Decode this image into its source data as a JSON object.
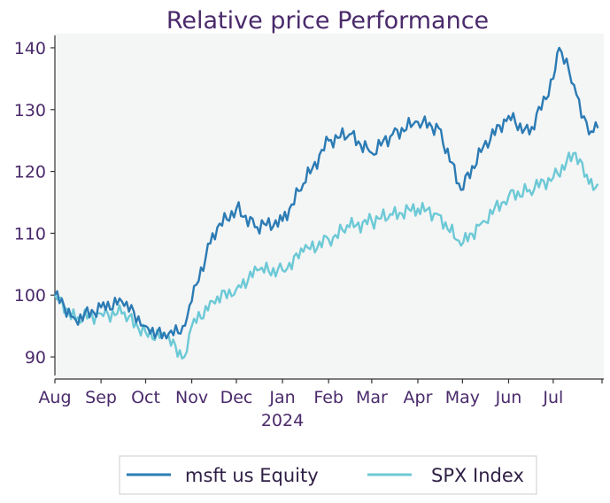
{
  "chart_data": {
    "type": "line",
    "title": "Relative price Performance",
    "xlabel": "",
    "ylabel": "",
    "ylim": [
      87,
      142
    ],
    "y_ticks": [
      90,
      100,
      110,
      120,
      130,
      140
    ],
    "x_tick_labels": [
      "Aug",
      "Sep",
      "Oct",
      "Nov",
      "Dec",
      "Jan",
      "Feb",
      "Mar",
      "Apr",
      "May",
      "Jun",
      "Jul"
    ],
    "year_label": "2024",
    "grid": false,
    "legend_position": "bottom",
    "background": "#f4f5f5",
    "series": [
      {
        "name": "msft us Equity",
        "color": "#2b7bb4",
        "x": [
          "2023-08-01",
          "2023-08-15",
          "2023-09-01",
          "2023-09-15",
          "2023-10-01",
          "2023-10-15",
          "2023-10-26",
          "2023-11-01",
          "2023-11-15",
          "2023-12-01",
          "2023-12-15",
          "2024-01-01",
          "2024-01-15",
          "2024-02-01",
          "2024-02-15",
          "2024-03-01",
          "2024-03-15",
          "2024-04-01",
          "2024-04-15",
          "2024-04-30",
          "2024-05-15",
          "2024-06-01",
          "2024-06-15",
          "2024-07-01",
          "2024-07-05",
          "2024-07-15",
          "2024-07-25",
          "2024-07-31"
        ],
        "values": [
          100,
          96,
          98,
          99,
          95,
          93,
          95,
          99,
          110,
          114,
          111,
          112,
          118,
          125,
          126,
          123,
          126,
          128,
          127,
          117,
          124,
          129,
          126,
          135,
          140,
          134,
          126,
          127
        ]
      },
      {
        "name": "SPX Index",
        "color": "#6cc9d6",
        "x": [
          "2023-08-01",
          "2023-08-15",
          "2023-09-01",
          "2023-09-15",
          "2023-10-01",
          "2023-10-15",
          "2023-10-27",
          "2023-11-01",
          "2023-11-15",
          "2023-12-01",
          "2023-12-15",
          "2024-01-01",
          "2024-01-15",
          "2024-02-01",
          "2024-02-15",
          "2024-03-01",
          "2024-03-15",
          "2024-04-01",
          "2024-04-15",
          "2024-04-30",
          "2024-05-15",
          "2024-06-01",
          "2024-06-15",
          "2024-07-01",
          "2024-07-16",
          "2024-07-25",
          "2024-07-31"
        ],
        "values": [
          100,
          96,
          97,
          97,
          94,
          93,
          90,
          95,
          99,
          101,
          104,
          104,
          107,
          109,
          111,
          112,
          113,
          114,
          113,
          108,
          112,
          116,
          117,
          119,
          123,
          118,
          118
        ]
      }
    ]
  }
}
